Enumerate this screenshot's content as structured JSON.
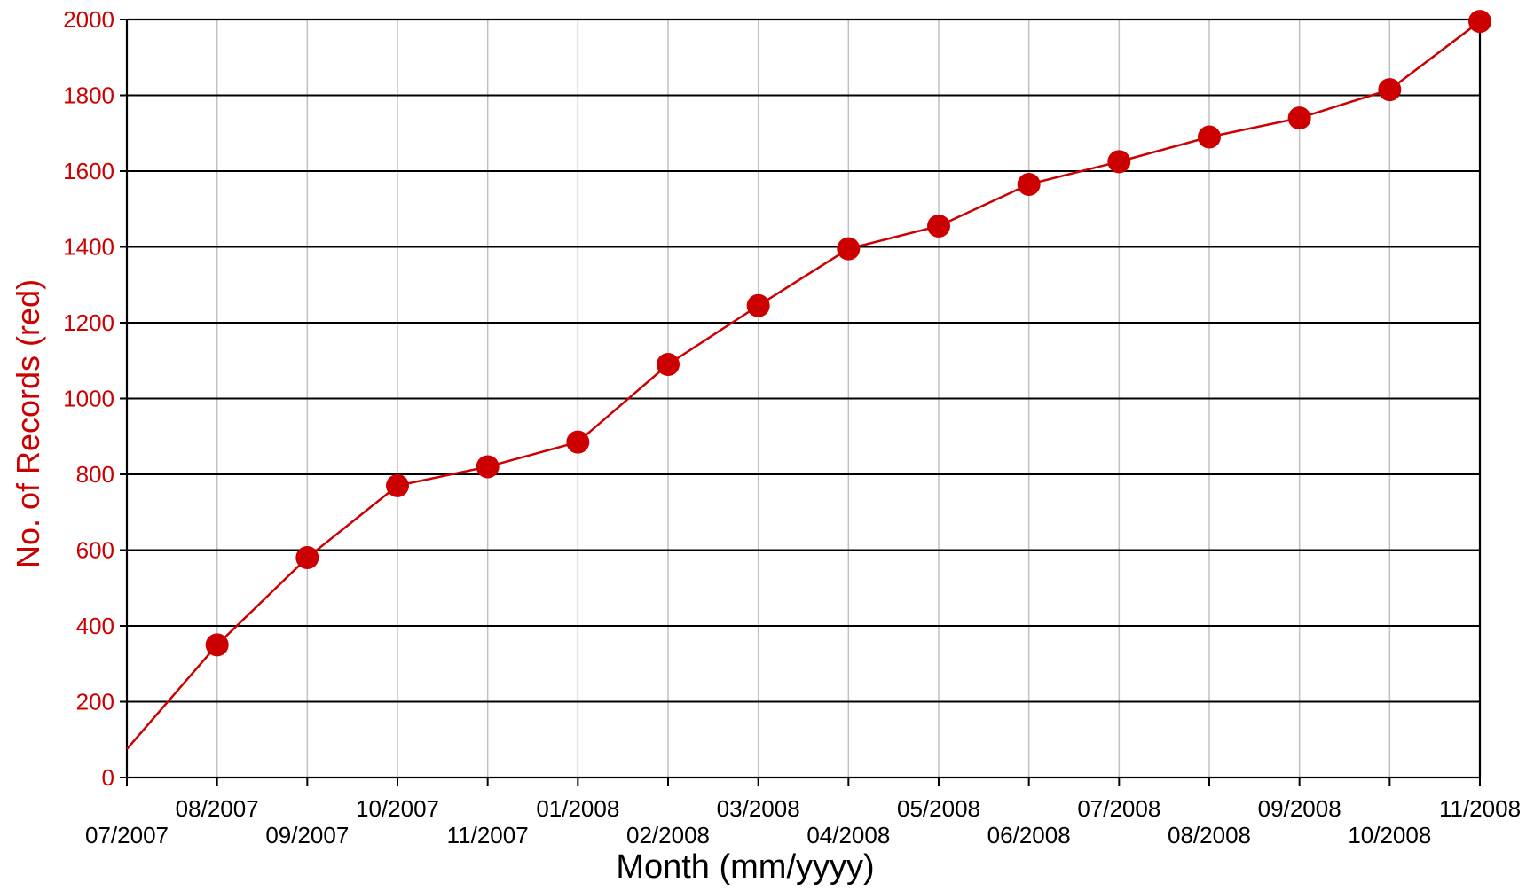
{
  "chart_data": {
    "type": "line",
    "title": "",
    "xlabel": "Month (mm/yyyy)",
    "ylabel": "No. of Records (red)",
    "ylim": [
      0,
      2000
    ],
    "y_ticks": [
      0,
      200,
      400,
      600,
      800,
      1000,
      1200,
      1400,
      1600,
      1800,
      2000
    ],
    "categories": [
      "07/2007",
      "08/2007",
      "09/2007",
      "10/2007",
      "11/2007",
      "01/2008",
      "02/2008",
      "03/2008",
      "04/2008",
      "05/2008",
      "06/2008",
      "07/2008",
      "08/2008",
      "09/2008",
      "10/2008",
      "11/2008"
    ],
    "series": [
      {
        "values": [
          75,
          350,
          580,
          770,
          820,
          885,
          1090,
          1245,
          1395,
          1455,
          1565,
          1625,
          1690,
          1740,
          1815,
          1995
        ],
        "color": "#cc0000"
      }
    ],
    "colors": {
      "series": "#cc0000",
      "axis_text": "#cc0000",
      "major_grid": "#000000",
      "minor_grid": "#c0c0c0"
    },
    "grid": true,
    "legend": "none"
  }
}
